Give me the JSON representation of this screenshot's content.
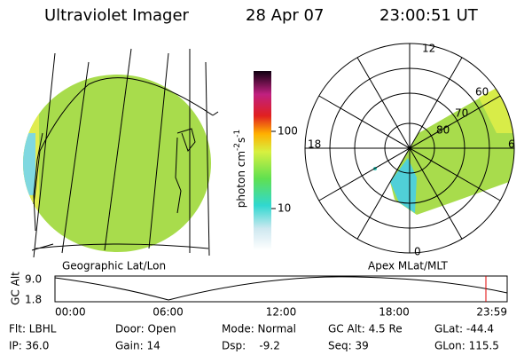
{
  "header": {
    "title": "Ultraviolet Imager",
    "date": "28 Apr 07",
    "time": "23:00:51 UT"
  },
  "colorbar": {
    "unit_parts": [
      "photon cm",
      "-2",
      "s",
      "-1"
    ],
    "ticks": [
      "100",
      "10"
    ]
  },
  "polar": {
    "mlt_labels": [
      "12",
      "18",
      "6",
      "0"
    ],
    "mlat_labels": [
      "60",
      "70",
      "80"
    ]
  },
  "panels": {
    "left": "Geographic Lat/Lon",
    "right": "Apex MLat/MLT"
  },
  "altitude_plot": {
    "y_label": "GC Alt",
    "y_ticks": [
      "9.0",
      "1.8"
    ],
    "x_ticks": [
      "00:00",
      "06:00",
      "12:00",
      "18:00",
      "23:59"
    ]
  },
  "info": [
    [
      "Flt: LBHL",
      "IP: 36.0"
    ],
    [
      "Door: Open",
      "Gain: 14"
    ],
    [
      "Mode: Normal",
      "Dsp:    -9.2"
    ],
    [
      "GC Alt: 4.5 Re",
      "Seq: 39"
    ],
    [
      "GLat: -44.4",
      "GLon: 115.5"
    ]
  ]
}
